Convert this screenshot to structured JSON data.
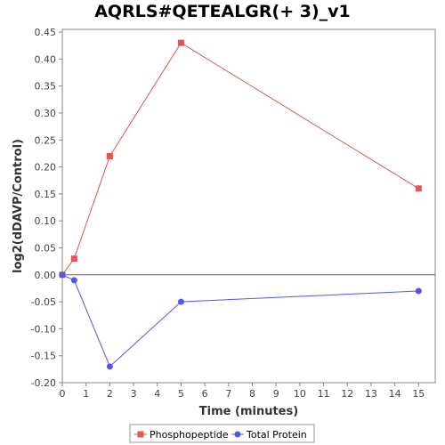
{
  "chart_data": {
    "type": "line",
    "title": "AQRLS#QETEALGR(+ 3)_v1",
    "xlabel": "Time (minutes)",
    "ylabel": "log2(dDAVP/Control)",
    "xlim": [
      0,
      15.7
    ],
    "ylim": [
      -0.2,
      0.455
    ],
    "x_ticks": [
      0,
      1,
      2,
      3,
      4,
      5,
      6,
      7,
      8,
      9,
      10,
      11,
      12,
      13,
      14,
      15
    ],
    "y_ticks": [
      -0.2,
      -0.15,
      -0.1,
      -0.05,
      0.0,
      0.05,
      0.1,
      0.15,
      0.2,
      0.25,
      0.3,
      0.35,
      0.4,
      0.45
    ],
    "y_tick_labels": [
      "-0.20",
      "-0.15",
      "-0.10",
      "-0.05",
      "0.00",
      "0.05",
      "0.10",
      "0.15",
      "0.20",
      "0.25",
      "0.30",
      "0.35",
      "0.40",
      "0.45"
    ],
    "grid": false,
    "zero_line": true,
    "legend_position": "bottom",
    "series": [
      {
        "name": "Phosphopeptide",
        "color": "#e05555",
        "marker": "square",
        "x": [
          0,
          0.5,
          2,
          5,
          15
        ],
        "y": [
          0.0,
          0.03,
          0.22,
          0.43,
          0.16
        ]
      },
      {
        "name": "Total Protein",
        "color": "#5555e8",
        "marker": "circle",
        "x": [
          0,
          0.5,
          2,
          5,
          15
        ],
        "y": [
          0.0,
          -0.01,
          -0.17,
          -0.05,
          -0.03
        ]
      }
    ]
  }
}
